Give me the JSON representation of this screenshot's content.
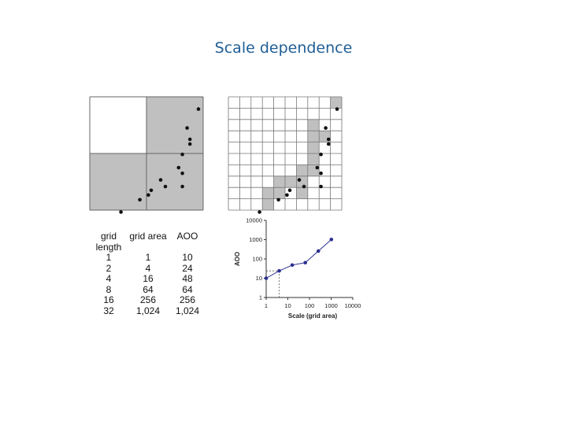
{
  "title": "Scale dependence",
  "table": {
    "headers": {
      "grid_length": [
        "grid",
        "length"
      ],
      "grid_area": "grid area",
      "aoo": "AOO"
    },
    "rows": [
      {
        "grid_length": "1",
        "grid_area": "1",
        "aoo": "10"
      },
      {
        "grid_length": "2",
        "grid_area": "4",
        "aoo": "24"
      },
      {
        "grid_length": "4",
        "grid_area": "16",
        "aoo": "48"
      },
      {
        "grid_length": "8",
        "grid_area": "64",
        "aoo": "64"
      },
      {
        "grid_length": "16",
        "grid_area": "256",
        "aoo": "256"
      },
      {
        "grid_length": "32",
        "grid_area": "1,024",
        "aoo": "1,024"
      }
    ]
  },
  "chart_data": [
    {
      "type": "scatter",
      "title": "",
      "description_grid": "2x2 grid cells",
      "grid": {
        "cols": 2,
        "rows": 2,
        "occupied": [
          [
            1,
            0
          ],
          [
            0,
            1
          ],
          [
            1,
            1
          ]
        ]
      },
      "points": [
        [
          11.5,
          1.3
        ],
        [
          10.3,
          3.3
        ],
        [
          10.6,
          4.5
        ],
        [
          10.6,
          5
        ],
        [
          9.8,
          6.1
        ],
        [
          9.4,
          7.5
        ],
        [
          9.8,
          8.1
        ],
        [
          7.5,
          8.8
        ],
        [
          8,
          9.5
        ],
        [
          9.8,
          9.5
        ],
        [
          6.5,
          9.9
        ],
        [
          5.3,
          10.9
        ],
        [
          6.2,
          10.4
        ],
        [
          3.3,
          12.2
        ]
      ],
      "extent": [
        0,
        12,
        0,
        12
      ]
    },
    {
      "type": "scatter",
      "title": "",
      "description_grid": "10x10 grid cells",
      "grid": {
        "cols": 10,
        "rows": 10,
        "occupied": [
          [
            9,
            0
          ],
          [
            7,
            2
          ],
          [
            7,
            3
          ],
          [
            8,
            3
          ],
          [
            7,
            4
          ],
          [
            7,
            5
          ],
          [
            6,
            6
          ],
          [
            7,
            6
          ],
          [
            4,
            7
          ],
          [
            5,
            7
          ],
          [
            6,
            7
          ],
          [
            3,
            8
          ],
          [
            4,
            8
          ],
          [
            6,
            8
          ],
          [
            3,
            9
          ]
        ]
      }
    },
    {
      "type": "line",
      "title": "",
      "xlabel": "Scale (grid area)",
      "ylabel": "AOO",
      "xscale": "log",
      "yscale": "log",
      "xlim": [
        1,
        10000
      ],
      "ylim": [
        1,
        10000
      ],
      "x_ticks": [
        "1",
        "10",
        "100",
        "1000",
        "10000"
      ],
      "y_ticks": [
        "1",
        "10",
        "100",
        "1000",
        "10000"
      ],
      "series": [
        {
          "x": [
            1,
            4,
            16,
            64,
            256,
            1024
          ],
          "y": [
            10,
            24,
            48,
            64,
            256,
            1024
          ]
        }
      ],
      "reference_point": {
        "x": 4,
        "y": 24
      }
    }
  ],
  "colors": {
    "title": "#1f5f96",
    "occupied": "#c0c0c0",
    "line": "#2a2f8f",
    "grid": "#666666"
  }
}
